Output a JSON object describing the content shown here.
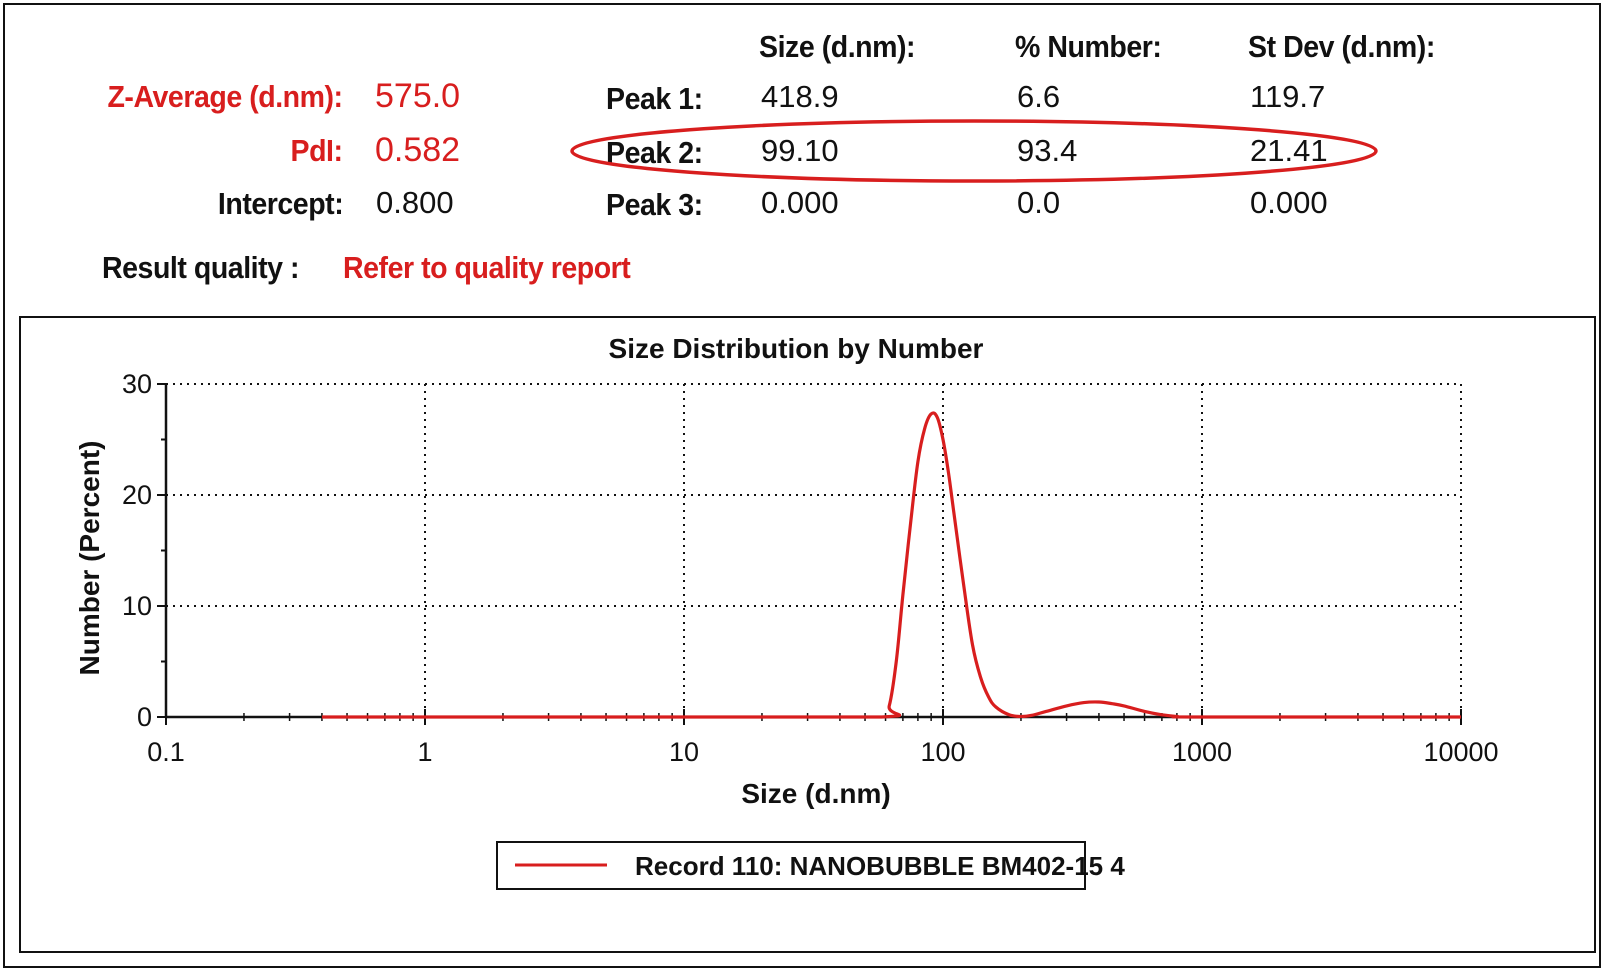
{
  "summary": {
    "z_average_label": "Z-Average (d.nm):",
    "z_average_value": "575.0",
    "pdi_label": "PdI:",
    "pdi_value": "0.582",
    "intercept_label": "Intercept:",
    "intercept_value": "0.800",
    "result_quality_label": "Result quality :",
    "result_quality_value": "Refer to quality report"
  },
  "peaks": {
    "headers": [
      "Size (d.nm):",
      "% Number:",
      "St Dev (d.nm):"
    ],
    "rows": [
      {
        "label": "Peak 1:",
        "size": "418.9",
        "percent": "6.6",
        "stdev": "119.7"
      },
      {
        "label": "Peak 2:",
        "size": "99.10",
        "percent": "93.4",
        "stdev": "21.41"
      },
      {
        "label": "Peak 3:",
        "size": "0.000",
        "percent": "0.0",
        "stdev": "0.000"
      }
    ],
    "highlighted_row": "Peak 2:"
  },
  "colors": {
    "accent": "#d81e1e",
    "text": "#111111",
    "grid": "#111111"
  },
  "chart_data": {
    "type": "line",
    "title": "Size Distribution by Number",
    "xlabel": "Size (d.nm)",
    "ylabel": "Number (Percent)",
    "x_scale": "log",
    "xlim": [
      0.1,
      10000
    ],
    "ylim": [
      0,
      30
    ],
    "x_ticks": [
      "0.1",
      "1",
      "10",
      "100",
      "1000",
      "10000"
    ],
    "y_ticks": [
      "0",
      "10",
      "20",
      "30"
    ],
    "grid": true,
    "legend_position": "bottom-center",
    "series": [
      {
        "name": "Record 110: NANOBUBBLE BM402-15 4",
        "color": "#d81e1e",
        "x": [
          0.4,
          1,
          10,
          58,
          62,
          66,
          70,
          75,
          80,
          85,
          90,
          95,
          100,
          105,
          110,
          120,
          130,
          140,
          150,
          160,
          180,
          200,
          220,
          250,
          300,
          350,
          400,
          450,
          500,
          600,
          700,
          800,
          1000,
          10000
        ],
        "y": [
          0,
          0,
          0,
          0,
          1.0,
          5.0,
          11.0,
          17.5,
          23.0,
          26.0,
          27.3,
          27.0,
          25.0,
          22.0,
          18.5,
          12.0,
          6.5,
          3.5,
          1.8,
          0.9,
          0.2,
          0.05,
          0.15,
          0.5,
          1.0,
          1.3,
          1.35,
          1.2,
          1.0,
          0.5,
          0.2,
          0.05,
          0,
          0
        ]
      }
    ]
  }
}
